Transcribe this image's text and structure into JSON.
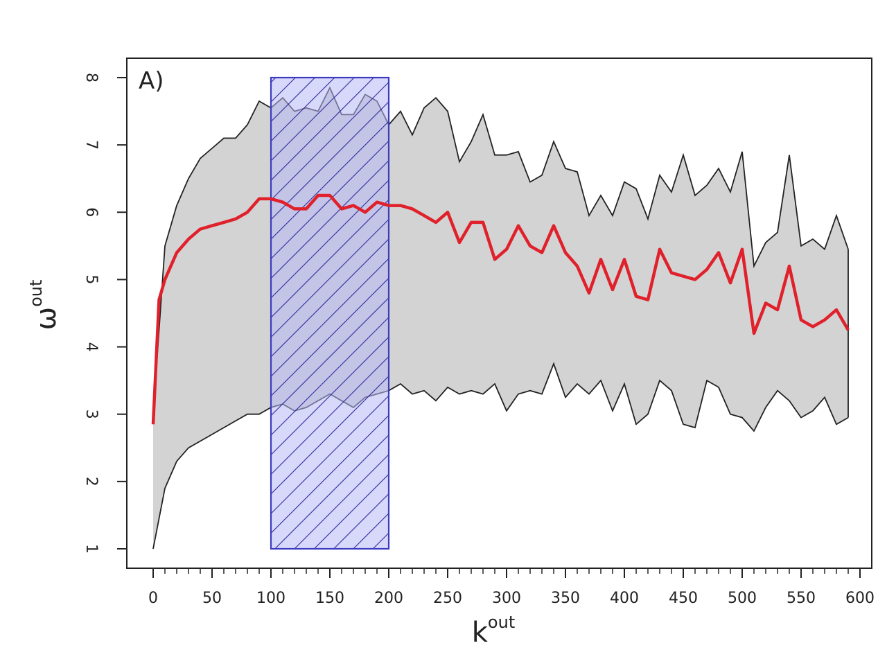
{
  "chart_data": {
    "type": "line",
    "panel_label": "A)",
    "xlabel": {
      "base": "k",
      "sup": "out"
    },
    "ylabel": {
      "base": "ω",
      "sup": "out"
    },
    "xlim": [
      0,
      600
    ],
    "ylim": [
      1,
      8
    ],
    "xticks": [
      0,
      50,
      100,
      150,
      200,
      250,
      300,
      350,
      400,
      450,
      500,
      550,
      600
    ],
    "xtick_labels": [
      "0",
      "50",
      "100",
      "150",
      "200",
      "250",
      "300",
      "350",
      "400",
      "450",
      "500",
      "550",
      "600"
    ],
    "yticks": [
      1,
      2,
      3,
      4,
      5,
      6,
      7,
      8
    ],
    "ytick_labels": [
      "1",
      "2",
      "3",
      "4",
      "5",
      "6",
      "7",
      "8"
    ],
    "grid": false,
    "highlight_region": {
      "x": [
        100,
        200
      ],
      "y": [
        1,
        8
      ],
      "fill": "#b8b8f5",
      "stroke": "#3b3bc0",
      "pattern": "diagonal-hatch"
    },
    "band": {
      "fill": "#d3d3d3",
      "stroke": "#222222",
      "upper": [
        [
          0,
          3.0
        ],
        [
          10,
          5.5
        ],
        [
          20,
          6.1
        ],
        [
          30,
          6.5
        ],
        [
          40,
          6.8
        ],
        [
          50,
          6.95
        ],
        [
          60,
          7.1
        ],
        [
          70,
          7.1
        ],
        [
          80,
          7.3
        ],
        [
          90,
          7.65
        ],
        [
          100,
          7.55
        ],
        [
          110,
          7.7
        ],
        [
          120,
          7.5
        ],
        [
          130,
          7.55
        ],
        [
          140,
          7.5
        ],
        [
          150,
          7.85
        ],
        [
          160,
          7.45
        ],
        [
          170,
          7.45
        ],
        [
          180,
          7.75
        ],
        [
          190,
          7.65
        ],
        [
          200,
          7.3
        ],
        [
          210,
          7.5
        ],
        [
          220,
          7.15
        ],
        [
          230,
          7.55
        ],
        [
          240,
          7.7
        ],
        [
          250,
          7.5
        ],
        [
          260,
          6.75
        ],
        [
          270,
          7.05
        ],
        [
          280,
          7.45
        ],
        [
          290,
          6.85
        ],
        [
          300,
          6.85
        ],
        [
          310,
          6.9
        ],
        [
          320,
          6.45
        ],
        [
          330,
          6.55
        ],
        [
          340,
          7.05
        ],
        [
          350,
          6.65
        ],
        [
          360,
          6.6
        ],
        [
          370,
          5.95
        ],
        [
          380,
          6.25
        ],
        [
          390,
          5.95
        ],
        [
          400,
          6.45
        ],
        [
          410,
          6.35
        ],
        [
          420,
          5.9
        ],
        [
          430,
          6.55
        ],
        [
          440,
          6.3
        ],
        [
          450,
          6.85
        ],
        [
          460,
          6.25
        ],
        [
          470,
          6.4
        ],
        [
          480,
          6.65
        ],
        [
          490,
          6.3
        ],
        [
          500,
          6.9
        ],
        [
          510,
          5.2
        ],
        [
          520,
          5.55
        ],
        [
          530,
          5.7
        ],
        [
          540,
          6.85
        ],
        [
          550,
          5.5
        ],
        [
          560,
          5.6
        ],
        [
          570,
          5.45
        ],
        [
          580,
          5.95
        ],
        [
          590,
          5.45
        ]
      ],
      "lower": [
        [
          0,
          1.0
        ],
        [
          10,
          1.9
        ],
        [
          20,
          2.3
        ],
        [
          30,
          2.5
        ],
        [
          40,
          2.6
        ],
        [
          50,
          2.7
        ],
        [
          60,
          2.8
        ],
        [
          70,
          2.9
        ],
        [
          80,
          3.0
        ],
        [
          90,
          3.0
        ],
        [
          100,
          3.1
        ],
        [
          110,
          3.15
        ],
        [
          120,
          3.05
        ],
        [
          130,
          3.1
        ],
        [
          140,
          3.2
        ],
        [
          150,
          3.3
        ],
        [
          160,
          3.2
        ],
        [
          170,
          3.1
        ],
        [
          180,
          3.25
        ],
        [
          190,
          3.3
        ],
        [
          200,
          3.35
        ],
        [
          210,
          3.45
        ],
        [
          220,
          3.3
        ],
        [
          230,
          3.35
        ],
        [
          240,
          3.2
        ],
        [
          250,
          3.4
        ],
        [
          260,
          3.3
        ],
        [
          270,
          3.35
        ],
        [
          280,
          3.3
        ],
        [
          290,
          3.45
        ],
        [
          300,
          3.05
        ],
        [
          310,
          3.3
        ],
        [
          320,
          3.35
        ],
        [
          330,
          3.3
        ],
        [
          340,
          3.75
        ],
        [
          350,
          3.25
        ],
        [
          360,
          3.45
        ],
        [
          370,
          3.3
        ],
        [
          380,
          3.5
        ],
        [
          390,
          3.05
        ],
        [
          400,
          3.45
        ],
        [
          410,
          2.85
        ],
        [
          420,
          3.0
        ],
        [
          430,
          3.5
        ],
        [
          440,
          3.35
        ],
        [
          450,
          2.85
        ],
        [
          460,
          2.8
        ],
        [
          470,
          3.5
        ],
        [
          480,
          3.4
        ],
        [
          490,
          3.0
        ],
        [
          500,
          2.95
        ],
        [
          510,
          2.75
        ],
        [
          520,
          3.1
        ],
        [
          530,
          3.35
        ],
        [
          540,
          3.2
        ],
        [
          550,
          2.95
        ],
        [
          560,
          3.05
        ],
        [
          570,
          3.25
        ],
        [
          580,
          2.85
        ],
        [
          590,
          2.95
        ]
      ]
    },
    "series": [
      {
        "color": "#e0202a",
        "values": [
          [
            0,
            2.85
          ],
          [
            5,
            4.7
          ],
          [
            10,
            5.0
          ],
          [
            20,
            5.4
          ],
          [
            30,
            5.6
          ],
          [
            40,
            5.75
          ],
          [
            50,
            5.8
          ],
          [
            60,
            5.85
          ],
          [
            70,
            5.9
          ],
          [
            80,
            6.0
          ],
          [
            90,
            6.2
          ],
          [
            100,
            6.2
          ],
          [
            110,
            6.15
          ],
          [
            120,
            6.05
          ],
          [
            130,
            6.05
          ],
          [
            140,
            6.25
          ],
          [
            150,
            6.25
          ],
          [
            160,
            6.05
          ],
          [
            170,
            6.1
          ],
          [
            180,
            6.0
          ],
          [
            190,
            6.15
          ],
          [
            200,
            6.1
          ],
          [
            210,
            6.1
          ],
          [
            220,
            6.05
          ],
          [
            230,
            5.95
          ],
          [
            240,
            5.85
          ],
          [
            250,
            6.0
          ],
          [
            260,
            5.55
          ],
          [
            270,
            5.85
          ],
          [
            280,
            5.85
          ],
          [
            290,
            5.3
          ],
          [
            300,
            5.45
          ],
          [
            310,
            5.8
          ],
          [
            320,
            5.5
          ],
          [
            330,
            5.4
          ],
          [
            340,
            5.8
          ],
          [
            350,
            5.4
          ],
          [
            360,
            5.2
          ],
          [
            370,
            4.8
          ],
          [
            380,
            5.3
          ],
          [
            390,
            4.85
          ],
          [
            400,
            5.3
          ],
          [
            410,
            4.75
          ],
          [
            420,
            4.7
          ],
          [
            430,
            5.45
          ],
          [
            440,
            5.1
          ],
          [
            450,
            5.05
          ],
          [
            460,
            5.0
          ],
          [
            470,
            5.15
          ],
          [
            480,
            5.4
          ],
          [
            490,
            4.95
          ],
          [
            500,
            5.45
          ],
          [
            510,
            4.2
          ],
          [
            520,
            4.65
          ],
          [
            530,
            4.55
          ],
          [
            540,
            5.2
          ],
          [
            550,
            4.4
          ],
          [
            560,
            4.3
          ],
          [
            570,
            4.4
          ],
          [
            580,
            4.55
          ],
          [
            590,
            4.25
          ]
        ]
      }
    ]
  }
}
